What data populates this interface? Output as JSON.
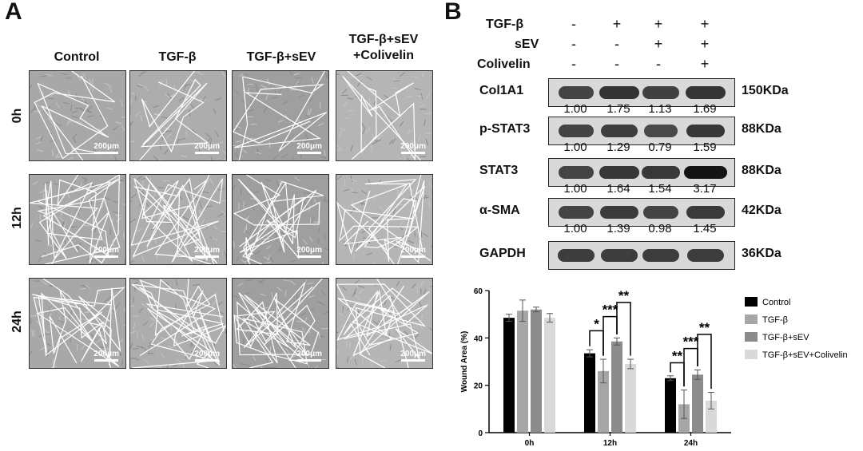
{
  "panel_a": {
    "letter": "A",
    "columns": [
      "Control",
      "TGF-β",
      "TGF-β+sEV",
      "TGF-β+sEV\n+Colivelin"
    ],
    "rows": [
      "0h",
      "12h",
      "24h"
    ],
    "scale_bar": "200μm"
  },
  "panel_b": {
    "letter": "B",
    "conditions": [
      {
        "label": "TGF-β",
        "signs": [
          "-",
          "+",
          "+",
          "+"
        ]
      },
      {
        "label": "sEV",
        "signs": [
          "-",
          "-",
          "+",
          "+"
        ]
      },
      {
        "label": "Colivelin",
        "signs": [
          "-",
          "-",
          "-",
          "+"
        ]
      }
    ],
    "blots": [
      {
        "protein": "Col1A1",
        "kda": "150KDa",
        "quant": [
          "1.00",
          "1.75",
          "1.13",
          "1.69"
        ]
      },
      {
        "protein": "p-STAT3",
        "kda": "88KDa",
        "quant": [
          "1.00",
          "1.29",
          "0.79",
          "1.59"
        ]
      },
      {
        "protein": "STAT3",
        "kda": "88KDa",
        "quant": [
          "1.00",
          "1.64",
          "1.54",
          "3.17"
        ]
      },
      {
        "protein": "α-SMA",
        "kda": "42KDa",
        "quant": [
          "1.00",
          "1.39",
          "0.98",
          "1.45"
        ]
      },
      {
        "protein": "GAPDH",
        "kda": "36KDa",
        "quant": []
      }
    ]
  },
  "chart_data": {
    "type": "bar",
    "categories": [
      "0h",
      "12h",
      "24h"
    ],
    "ylabel": "Wound Area (%)",
    "xlabel": "",
    "ylim": [
      0,
      60
    ],
    "yticks": [
      0,
      20,
      40,
      60
    ],
    "legend_position": "right",
    "colors": [
      "#000000",
      "#a6a6a6",
      "#8c8c8c",
      "#d9d9d9"
    ],
    "series": [
      {
        "name": "Control",
        "values": [
          48.5,
          33.5,
          23.0
        ],
        "errors": [
          1.5,
          1.5,
          1.0
        ]
      },
      {
        "name": "TGF-β",
        "values": [
          51.5,
          26.0,
          12.0
        ],
        "errors": [
          4.5,
          5.0,
          6.0
        ]
      },
      {
        "name": "TGF-β+sEV",
        "values": [
          52.0,
          38.5,
          24.5
        ],
        "errors": [
          1.0,
          1.5,
          2.0
        ]
      },
      {
        "name": "TGF-β+sEV+Colivelin",
        "values": [
          48.5,
          29.0,
          13.5
        ],
        "errors": [
          1.8,
          2.0,
          3.5
        ]
      }
    ],
    "significance": [
      {
        "category": "12h",
        "from": 0,
        "to": 1,
        "label": "*",
        "level": 0
      },
      {
        "category": "12h",
        "from": 1,
        "to": 2,
        "label": "***",
        "level": 1
      },
      {
        "category": "12h",
        "from": 2,
        "to": 3,
        "label": "**",
        "level": 2
      },
      {
        "category": "24h",
        "from": 0,
        "to": 1,
        "label": "**",
        "level": 0
      },
      {
        "category": "24h",
        "from": 1,
        "to": 2,
        "label": "***",
        "level": 1
      },
      {
        "category": "24h",
        "from": 2,
        "to": 3,
        "label": "**",
        "level": 2
      }
    ]
  }
}
